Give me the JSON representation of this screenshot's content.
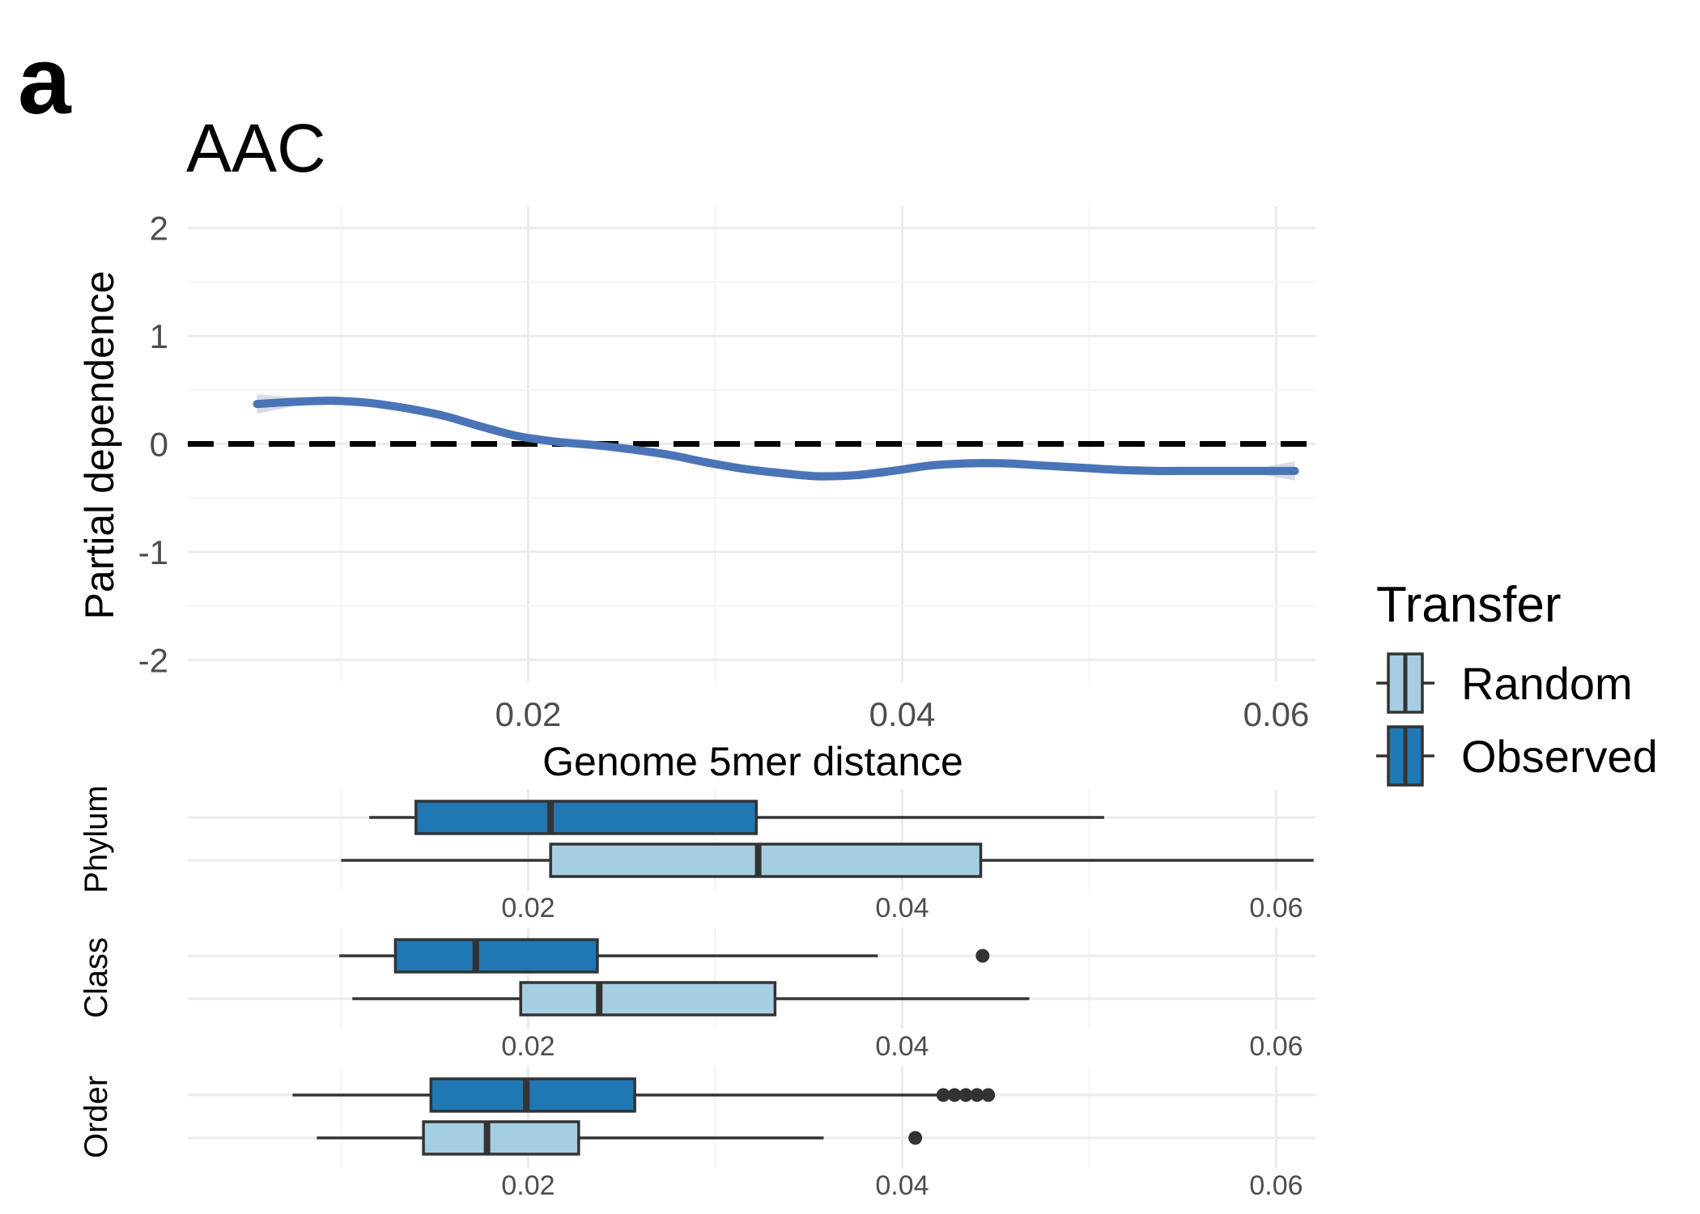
{
  "panel_label": "a",
  "colors": {
    "line": "#4a74b8",
    "ribbon": "#cfd3d8",
    "observed": "#1f78b4",
    "random": "#a6cee3",
    "outline": "#333333",
    "refline": "#000000"
  },
  "chart_data": [
    {
      "type": "line",
      "title": "AAC",
      "xlabel": "Genome 5mer distance",
      "ylabel": "Partial dependence",
      "xlim": [
        0.0018,
        0.0621
      ],
      "ylim": [
        -2.2,
        2.2
      ],
      "x_ticks": [
        "0.02",
        "0.04",
        "0.06"
      ],
      "y_ticks": [
        "2",
        "1",
        "0",
        "-1",
        "-2"
      ],
      "reference_line": {
        "y": 0,
        "style": "dashed"
      },
      "grid": true,
      "series": [
        {
          "x": [
            0.0055,
            0.0075,
            0.0095,
            0.0115,
            0.0135,
            0.0155,
            0.0175,
            0.0195,
            0.0215,
            0.0235,
            0.0255,
            0.0275,
            0.0295,
            0.0315,
            0.0335,
            0.0355,
            0.0375,
            0.0395,
            0.0415,
            0.0435,
            0.0455,
            0.0475,
            0.0495,
            0.0515,
            0.0535,
            0.0555,
            0.0575,
            0.0595,
            0.061
          ],
          "y": [
            0.37,
            0.39,
            0.4,
            0.38,
            0.33,
            0.26,
            0.16,
            0.07,
            0.02,
            -0.01,
            -0.05,
            -0.1,
            -0.17,
            -0.23,
            -0.27,
            -0.3,
            -0.29,
            -0.25,
            -0.2,
            -0.18,
            -0.18,
            -0.2,
            -0.22,
            -0.24,
            -0.25,
            -0.25,
            -0.25,
            -0.25,
            -0.25
          ]
        }
      ]
    },
    {
      "type": "box",
      "xlim": [
        0.0018,
        0.0621
      ],
      "x_ticks": [
        "0.02",
        "0.04",
        "0.06"
      ],
      "legend": {
        "title": "Transfer",
        "position": "right",
        "entries": [
          "Random",
          "Observed"
        ]
      },
      "panels": [
        {
          "label": "Phylum",
          "boxes": [
            {
              "group": "Observed",
              "whisker_low": 0.0115,
              "q1": 0.014,
              "median": 0.0212,
              "q3": 0.0322,
              "whisker_high": 0.0508,
              "outliers": []
            },
            {
              "group": "Random",
              "whisker_low": 0.01,
              "q1": 0.0212,
              "median": 0.0323,
              "q3": 0.0442,
              "whisker_high": 0.062,
              "outliers": []
            }
          ]
        },
        {
          "label": "Class",
          "boxes": [
            {
              "group": "Observed",
              "whisker_low": 0.0099,
              "q1": 0.0129,
              "median": 0.0172,
              "q3": 0.0237,
              "whisker_high": 0.0387,
              "outliers": [
                0.0443
              ]
            },
            {
              "group": "Random",
              "whisker_low": 0.0106,
              "q1": 0.0196,
              "median": 0.0238,
              "q3": 0.0332,
              "whisker_high": 0.0468,
              "outliers": []
            }
          ]
        },
        {
          "label": "Order",
          "boxes": [
            {
              "group": "Observed",
              "whisker_low": 0.0074,
              "q1": 0.0148,
              "median": 0.0199,
              "q3": 0.0257,
              "whisker_high": 0.042,
              "outliers": [
                0.0422,
                0.0428,
                0.0434,
                0.044,
                0.0446
              ]
            },
            {
              "group": "Random",
              "whisker_low": 0.0087,
              "q1": 0.0144,
              "median": 0.0178,
              "q3": 0.0227,
              "whisker_high": 0.0358,
              "outliers": [
                0.0407
              ]
            }
          ]
        }
      ]
    }
  ]
}
